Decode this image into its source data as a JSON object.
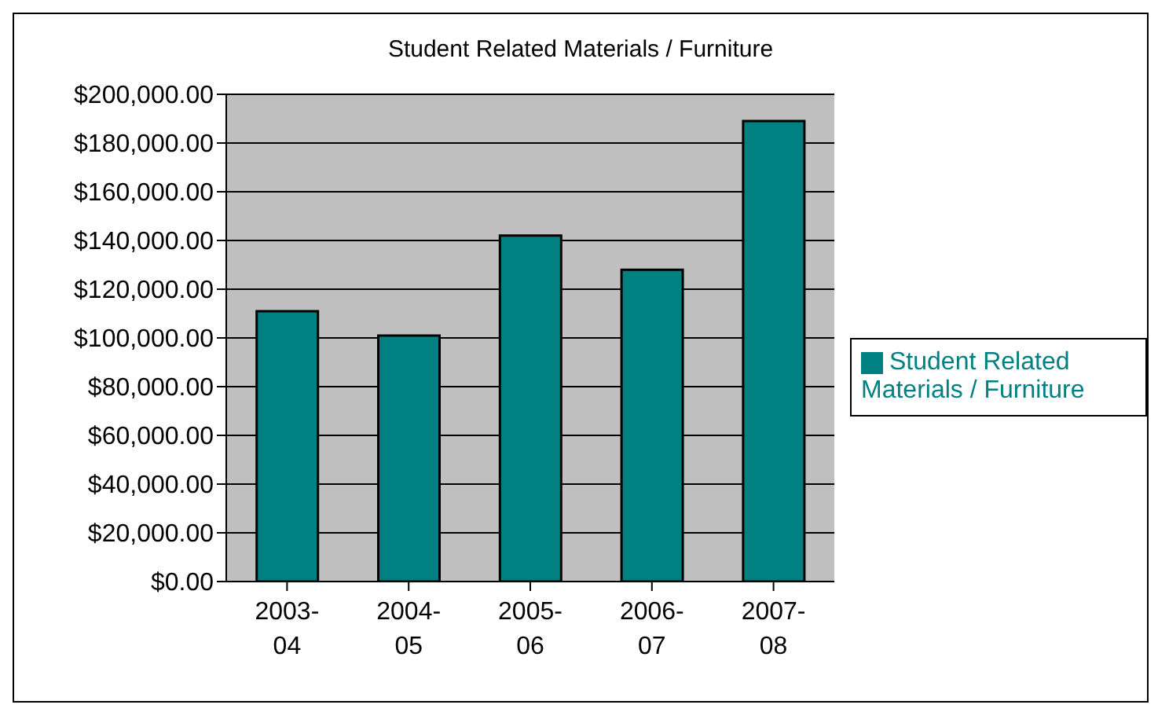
{
  "chart_data": {
    "type": "bar",
    "title": "Student Related Materials / Furniture",
    "categories": [
      "2003-04",
      "2004-05",
      "2005-06",
      "2006-07",
      "2007-08"
    ],
    "series": [
      {
        "name": "Student Related Materials / Furniture",
        "color": "#008080",
        "values": [
          111000,
          101000,
          142000,
          128000,
          189000
        ]
      }
    ],
    "ylim": [
      0,
      200000
    ],
    "yticks": [
      {
        "value": 0,
        "label": "$0.00"
      },
      {
        "value": 20000,
        "label": "$20,000.00"
      },
      {
        "value": 40000,
        "label": "$40,000.00"
      },
      {
        "value": 60000,
        "label": "$60,000.00"
      },
      {
        "value": 80000,
        "label": "$80,000.00"
      },
      {
        "value": 100000,
        "label": "$100,000.00"
      },
      {
        "value": 120000,
        "label": "$120,000.00"
      },
      {
        "value": 140000,
        "label": "$140,000.00"
      },
      {
        "value": 160000,
        "label": "$160,000.00"
      },
      {
        "value": 180000,
        "label": "$180,000.00"
      },
      {
        "value": 200000,
        "label": "$200,000.00"
      }
    ],
    "grid": "y",
    "legend": "right"
  }
}
